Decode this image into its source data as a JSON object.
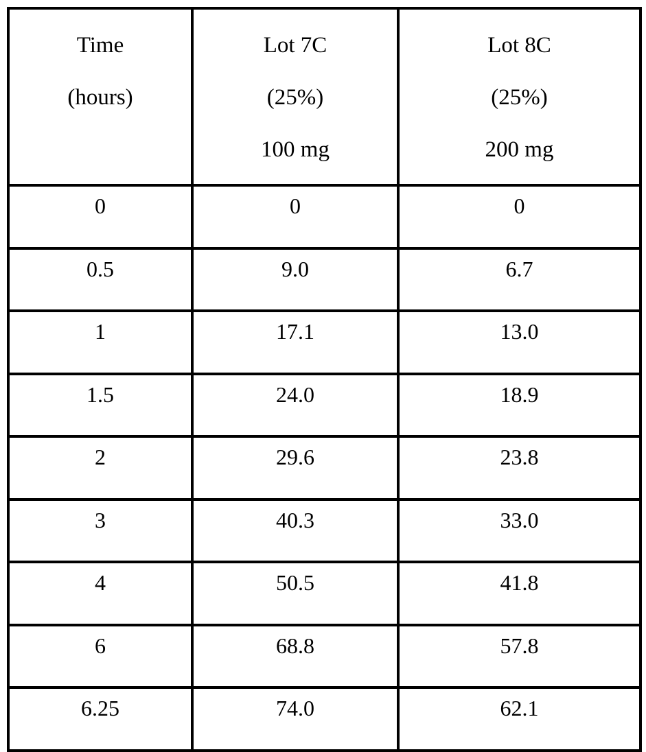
{
  "table": {
    "header": {
      "time": {
        "line1": "Time",
        "line2": "(hours)",
        "line3": ""
      },
      "lot7c": {
        "line1": "Lot 7C",
        "line2": "(25%)",
        "line3": "100 mg"
      },
      "lot8c": {
        "line1": "Lot 8C",
        "line2": "(25%)",
        "line3": "200 mg"
      }
    },
    "rows": [
      {
        "time": "0",
        "lot7c": "0",
        "lot8c": "0"
      },
      {
        "time": "0.5",
        "lot7c": "9.0",
        "lot8c": "6.7"
      },
      {
        "time": "1",
        "lot7c": "17.1",
        "lot8c": "13.0"
      },
      {
        "time": "1.5",
        "lot7c": "24.0",
        "lot8c": "18.9"
      },
      {
        "time": "2",
        "lot7c": "29.6",
        "lot8c": "23.8"
      },
      {
        "time": "3",
        "lot7c": "40.3",
        "lot8c": "33.0"
      },
      {
        "time": "4",
        "lot7c": "50.5",
        "lot8c": "41.8"
      },
      {
        "time": "6",
        "lot7c": "68.8",
        "lot8c": "57.8"
      },
      {
        "time": "6.25",
        "lot7c": "74.0",
        "lot8c": "62.1"
      }
    ]
  }
}
